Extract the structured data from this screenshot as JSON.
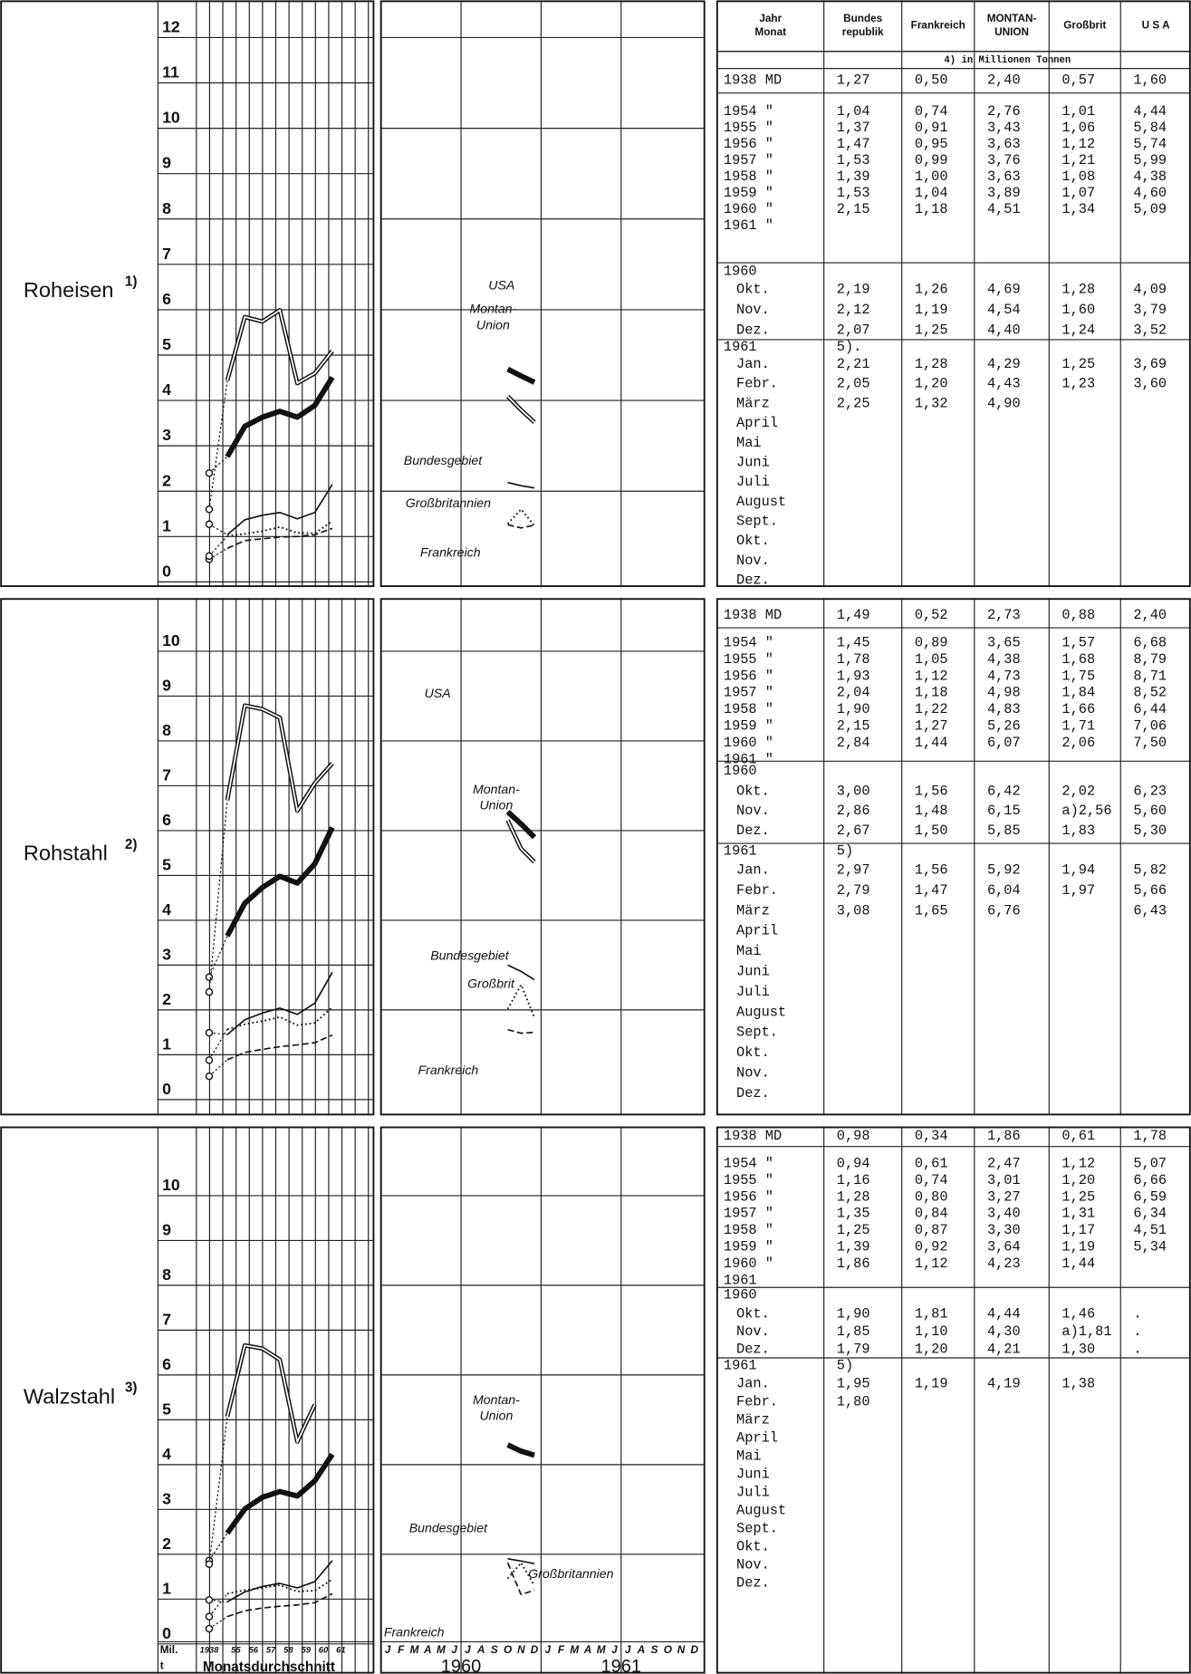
{
  "table_header": {
    "columns": [
      [
        "Jahr",
        "Monat"
      ],
      [
        "Bundes",
        "republik"
      ],
      [
        "Frankreich"
      ],
      [
        "MONTAN-",
        "UNION"
      ],
      [
        "Großbrit"
      ],
      [
        "U S A"
      ]
    ],
    "unit_note": "4) in Millionen Tonnen"
  },
  "sections": [
    {
      "title": "Roheisen",
      "note": "1)",
      "yticks": [
        0,
        1,
        2,
        3,
        4,
        5,
        6,
        7,
        8,
        9,
        10,
        11,
        12
      ],
      "labels": [
        [
          "USA"
        ],
        [
          "Montan-",
          "Union"
        ],
        [
          "Bundesgebiet"
        ],
        [
          "Großbritannien"
        ],
        [
          "Frankreich"
        ]
      ],
      "rows": [
        [
          "1938 MD",
          "1,27",
          "0,50",
          "2,40",
          "0,57",
          "1,60"
        ],
        [
          "1954 \"",
          "1,04",
          "0,74",
          "2,76",
          "1,01",
          "4,44"
        ],
        [
          "1955 \"",
          "1,37",
          "0,91",
          "3,43",
          "1,06",
          "5,84"
        ],
        [
          "1956 \"",
          "1,47",
          "0,95",
          "3,63",
          "1,12",
          "5,74"
        ],
        [
          "1957 \"",
          "1,53",
          "0,99",
          "3,76",
          "1,21",
          "5,99"
        ],
        [
          "1958 \"",
          "1,39",
          "1,00",
          "3,63",
          "1,08",
          "4,38"
        ],
        [
          "1959 \"",
          "1,53",
          "1,04",
          "3,89",
          "1,07",
          "4,60"
        ],
        [
          "1960 \"",
          "2,15",
          "1,18",
          "4,51",
          "1,34",
          "5,09"
        ],
        [
          "1961 \""
        ],
        [
          "1960"
        ],
        [
          "Okt.",
          "2,19",
          "1,26",
          "4,69",
          "1,28",
          "4,09"
        ],
        [
          "Nov.",
          "2,12",
          "1,19",
          "4,54",
          "1,60",
          "3,79"
        ],
        [
          "Dez.",
          "2,07",
          "1,25",
          "4,40",
          "1,24",
          "3,52"
        ],
        [
          "1961",
          "5)."
        ],
        [
          "Jan.",
          "2,21",
          "1,28",
          "4,29",
          "1,25",
          "3,69"
        ],
        [
          "Febr.",
          "2,05",
          "1,20",
          "4,43",
          "1,23",
          "3,60"
        ],
        [
          "März",
          "2,25",
          "1,32",
          "4,90"
        ],
        [
          "April"
        ],
        [
          "Mai"
        ],
        [
          "Juni"
        ],
        [
          "Juli"
        ],
        [
          "August"
        ],
        [
          "Sept."
        ],
        [
          "Okt."
        ],
        [
          "Nov."
        ],
        [
          "Dez."
        ]
      ]
    },
    {
      "title": "Rohstahl",
      "note": "2)",
      "yticks": [
        0,
        1,
        2,
        3,
        4,
        5,
        6,
        7,
        8,
        9,
        10
      ],
      "labels": [
        [
          "USA"
        ],
        [
          "Montan-",
          "Union"
        ],
        [
          "Bundesgebiet"
        ],
        [
          "Großbrit"
        ],
        [
          "Frankreich"
        ]
      ],
      "rows": [
        [
          "1938 MD",
          "1,49",
          "0,52",
          "2,73",
          "0,88",
          "2,40"
        ],
        [
          "1954 \"",
          "1,45",
          "0,89",
          "3,65",
          "1,57",
          "6,68"
        ],
        [
          "1955 \"",
          "1,78",
          "1,05",
          "4,38",
          "1,68",
          "8,79"
        ],
        [
          "1956 \"",
          "1,93",
          "1,12",
          "4,73",
          "1,75",
          "8,71"
        ],
        [
          "1957 \"",
          "2,04",
          "1,18",
          "4,98",
          "1,84",
          "8,52"
        ],
        [
          "1958 \"",
          "1,90",
          "1,22",
          "4,83",
          "1,66",
          "6,44"
        ],
        [
          "1959 \"",
          "2,15",
          "1,27",
          "5,26",
          "1,71",
          "7,06"
        ],
        [
          "1960 \"",
          "2,84",
          "1,44",
          "6,07",
          "2,06",
          "7,50"
        ],
        [
          "1961 \""
        ],
        [
          "1960"
        ],
        [
          "Okt.",
          "3,00",
          "1,56",
          "6,42",
          "2,02",
          "6,23"
        ],
        [
          "Nov.",
          "2,86",
          "1,48",
          "6,15",
          "a)2,56",
          "5,60"
        ],
        [
          "Dez.",
          "2,67",
          "1,50",
          "5,85",
          "1,83",
          "5,30"
        ],
        [
          "1961",
          "5)"
        ],
        [
          "Jan.",
          "2,97",
          "1,56",
          "5,92",
          "1,94",
          "5,82"
        ],
        [
          "Febr.",
          "2,79",
          "1,47",
          "6,04",
          "1,97",
          "5,66"
        ],
        [
          "März",
          "3,08",
          "1,65",
          "6,76",
          "",
          "6,43"
        ],
        [
          "April"
        ],
        [
          "Mai"
        ],
        [
          "Juni"
        ],
        [
          "Juli"
        ],
        [
          "August"
        ],
        [
          "Sept."
        ],
        [
          "Okt."
        ],
        [
          "Nov."
        ],
        [
          "Dez."
        ]
      ]
    },
    {
      "title": "Walzstahl",
      "note": "3)",
      "yticks": [
        0,
        1,
        2,
        3,
        4,
        5,
        6,
        7,
        8,
        9,
        10
      ],
      "labels": [
        [
          "Montan-",
          "Union"
        ],
        [
          "Bundesgebiet"
        ],
        [
          "Großbritannien"
        ],
        [
          "Frankreich"
        ]
      ],
      "rows": [
        [
          "1938 MD",
          "0,98",
          "0,34",
          "1,86",
          "0,61",
          "1,78"
        ],
        [
          "1954 \"",
          "0,94",
          "0,61",
          "2,47",
          "1,12",
          "5,07"
        ],
        [
          "1955 \"",
          "1,16",
          "0,74",
          "3,01",
          "1,20",
          "6,66"
        ],
        [
          "1956 \"",
          "1,28",
          "0,80",
          "3,27",
          "1,25",
          "6,59"
        ],
        [
          "1957 \"",
          "1,35",
          "0,84",
          "3,40",
          "1,31",
          "6,34"
        ],
        [
          "1958 \"",
          "1,25",
          "0,87",
          "3,30",
          "1,17",
          "4,51"
        ],
        [
          "1959 \"",
          "1,39",
          "0,92",
          "3,64",
          "1,19",
          "5,34"
        ],
        [
          "1960 \"",
          "1,86",
          "1,12",
          "4,23",
          "1,44"
        ],
        [
          "1961"
        ],
        [
          "1960"
        ],
        [
          "Okt.",
          "1,90",
          "1,81",
          "4,44",
          "1,46",
          "."
        ],
        [
          "Nov.",
          "1,85",
          "1,10",
          "4,30",
          "a)1,81",
          "."
        ],
        [
          "Dez.",
          "1,79",
          "1,20",
          "4,21",
          "1,30",
          "."
        ],
        [
          "1961",
          "5)"
        ],
        [
          "Jan.",
          "1,95",
          "1,19",
          "4,19",
          "1,38"
        ],
        [
          "Febr.",
          "1,80"
        ],
        [
          "März"
        ],
        [
          "April"
        ],
        [
          "Mai"
        ],
        [
          "Juni"
        ],
        [
          "Juli"
        ],
        [
          "August"
        ],
        [
          "Sept."
        ],
        [
          "Okt."
        ],
        [
          "Nov."
        ],
        [
          "Dez."
        ]
      ]
    }
  ],
  "x_axis": {
    "unit": [
      "Mil.",
      "t"
    ],
    "years": [
      "1938",
      "55",
      "56",
      "57",
      "58",
      "59",
      "60",
      "61"
    ],
    "years_caption": "Monatsdurchschnitt",
    "months": [
      "J",
      "F",
      "M",
      "A",
      "M",
      "J",
      "J",
      "A",
      "S",
      "O",
      "N",
      "D"
    ],
    "month_years": [
      "1960",
      "1961"
    ]
  }
}
